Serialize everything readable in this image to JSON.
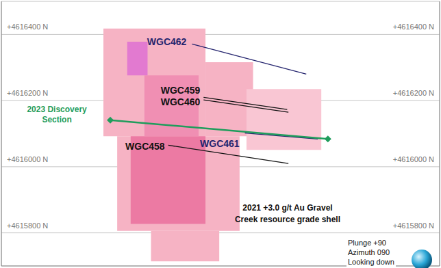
{
  "chart_data": {
    "type": "line",
    "xlim": [
      0,
      1400
    ],
    "ylim": [
      4615700,
      4616500
    ],
    "xticks": [
      330,
      560,
      790,
      1020,
      1250
    ],
    "yticks": [
      {
        "value": 4615800,
        "label": "+4615800 N"
      },
      {
        "value": 4616000,
        "label": "+4616000 N"
      },
      {
        "value": 4616200,
        "label": "+4616200 N"
      },
      {
        "value": 4616400,
        "label": "+4616400 N"
      }
    ],
    "tick_labels": "y",
    "grid": true,
    "series": [
      {
        "name": "WGC462",
        "color": "#24246e",
        "x": [
          609,
          974
        ],
        "values": [
          4616371,
          4616280
        ]
      },
      {
        "name": "WGC459",
        "color": "#111111",
        "x": [
          646,
          913
        ],
        "values": [
          4616210,
          4616173
        ]
      },
      {
        "name": "WGC460",
        "color": "#111111",
        "x": [
          646,
          917
        ],
        "values": [
          4616202,
          4616165
        ]
      },
      {
        "name": "WGC461",
        "color": "#24246e",
        "x": [
          778,
          1011
        ],
        "values": [
          4616102,
          4616084
        ]
      },
      {
        "name": "WGC458",
        "color": "#111111",
        "x": [
          533,
          917
        ],
        "values": [
          4616065,
          4616010
        ]
      },
      {
        "name": "2023 Discovery Section",
        "color": "#1f9d5c",
        "marker": "diamond",
        "x": [
          348,
          1043
        ],
        "values": [
          4616141,
          4616084
        ]
      }
    ],
    "grade_shell": [
      {
        "x": [
          326,
          652
        ],
        "y": [
          4616092,
          4616418
        ],
        "color": "#f6b3c4"
      },
      {
        "x": [
          652,
          804
        ],
        "y": [
          4616092,
          4616316
        ],
        "color": "#f6b3c4"
      },
      {
        "x": [
          783,
          1022
        ],
        "y": [
          4616051,
          4616235
        ],
        "color": "#f9c6d3"
      },
      {
        "x": [
          370,
          761
        ],
        "y": [
          4615806,
          4616092
        ],
        "color": "#f6b3c4"
      },
      {
        "x": [
          478,
          696
        ],
        "y": [
          4615714,
          4615806
        ],
        "color": "#f6b3c4"
      },
      {
        "x": [
          413,
          652
        ],
        "y": [
          4615827,
          4616092
        ],
        "color": "#ec7aa3"
      },
      {
        "x": [
          457,
          630
        ],
        "y": [
          4616092,
          4616276
        ],
        "color": "#f08fb3"
      },
      {
        "x": [
          402,
          467
        ],
        "y": [
          4616276,
          4616378
        ],
        "color": "#e27ad0"
      }
    ],
    "annotations": [
      [
        "2021 +3.0 g/t Au Gravel",
        "Creek resource grade shell"
      ],
      [
        "Plunge +90",
        "Azimuth 090",
        "Looking down"
      ]
    ]
  }
}
